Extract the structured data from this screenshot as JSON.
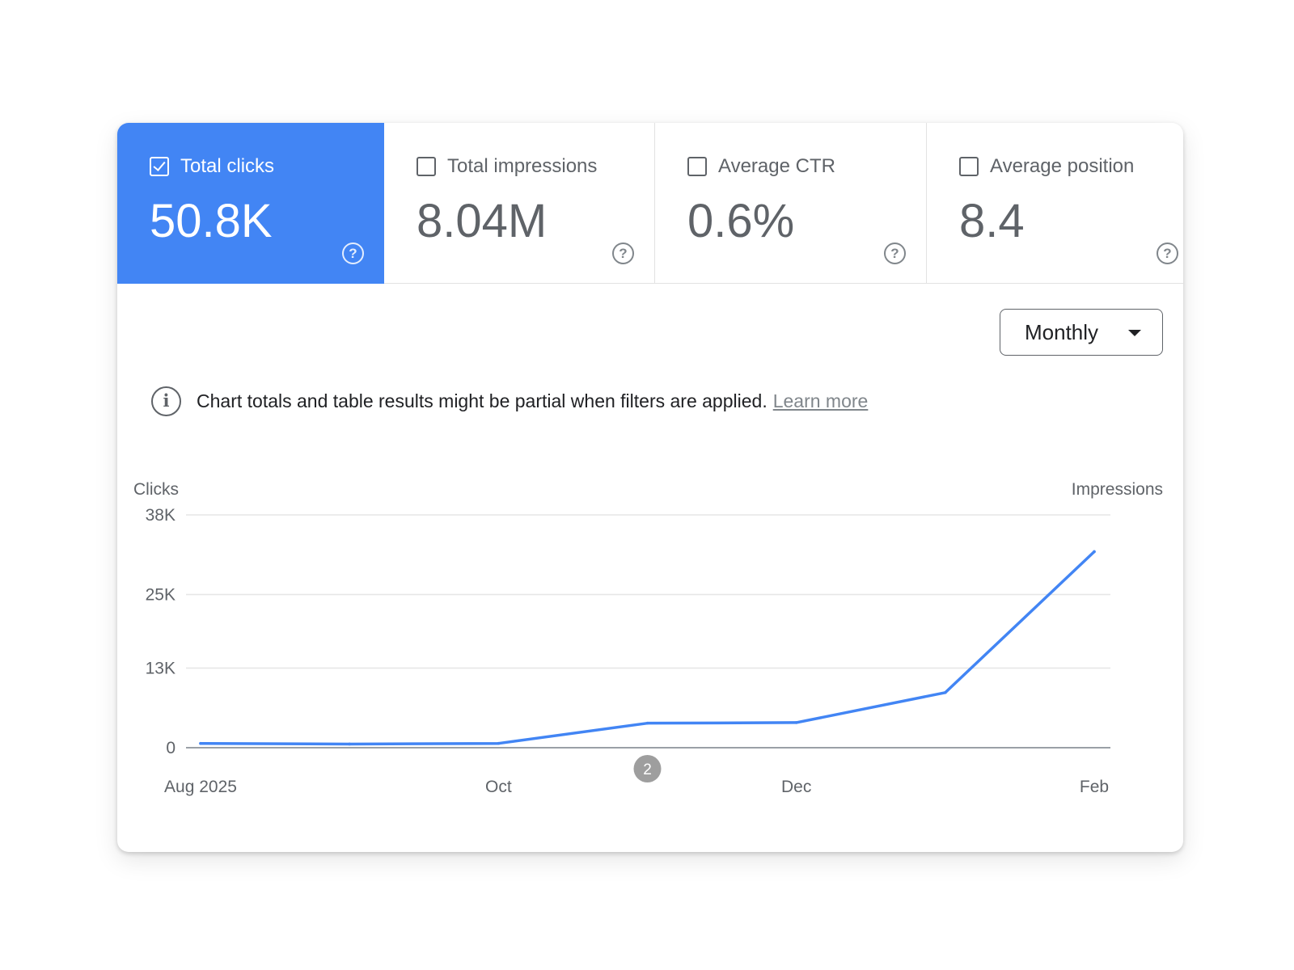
{
  "metrics": [
    {
      "label": "Total clicks",
      "value": "50.8K",
      "checked": true,
      "help_icon": "help-circle-icon"
    },
    {
      "label": "Total impressions",
      "value": "8.04M",
      "checked": false,
      "help_icon": "help-circle-icon"
    },
    {
      "label": "Average CTR",
      "value": "0.6%",
      "checked": false,
      "help_icon": "help-circle-icon"
    },
    {
      "label": "Average position",
      "value": "8.4",
      "checked": false,
      "help_icon": "help-circle-icon"
    }
  ],
  "dropdown": {
    "selected": "Monthly",
    "icon": "arrow-drop-down-icon"
  },
  "notice": {
    "icon": "info-icon",
    "text": "Chart totals and table results might be partial when filters are applied.",
    "link": "Learn more"
  },
  "marker": {
    "label": "2"
  },
  "colors": {
    "accent": "#4285f4",
    "line": "#4285f4",
    "marker": "#9e9e9e"
  },
  "chart_data": {
    "type": "line",
    "ylabel_left": "Clicks",
    "ylabel_right": "Impressions",
    "ylim": [
      0,
      38000
    ],
    "yticks": [
      {
        "value": 0,
        "label": "0"
      },
      {
        "value": 13000,
        "label": "13K"
      },
      {
        "value": 25000,
        "label": "25K"
      },
      {
        "value": 38000,
        "label": "38K"
      }
    ],
    "x": [
      "2025-08",
      "2025-09",
      "2025-10",
      "2025-11",
      "2025-12",
      "2026-01",
      "2026-02"
    ],
    "xticks": [
      {
        "x": "2025-08",
        "label": "Aug 2025"
      },
      {
        "x": "2025-10",
        "label": "Oct"
      },
      {
        "x": "2025-12",
        "label": "Dec"
      },
      {
        "x": "2026-02",
        "label": "Feb"
      }
    ],
    "series": [
      {
        "values": [
          700,
          600,
          700,
          4000,
          4100,
          9000,
          32000
        ]
      }
    ],
    "annotations": [
      {
        "x": "2025-11",
        "label": "2"
      }
    ],
    "grid": true
  }
}
